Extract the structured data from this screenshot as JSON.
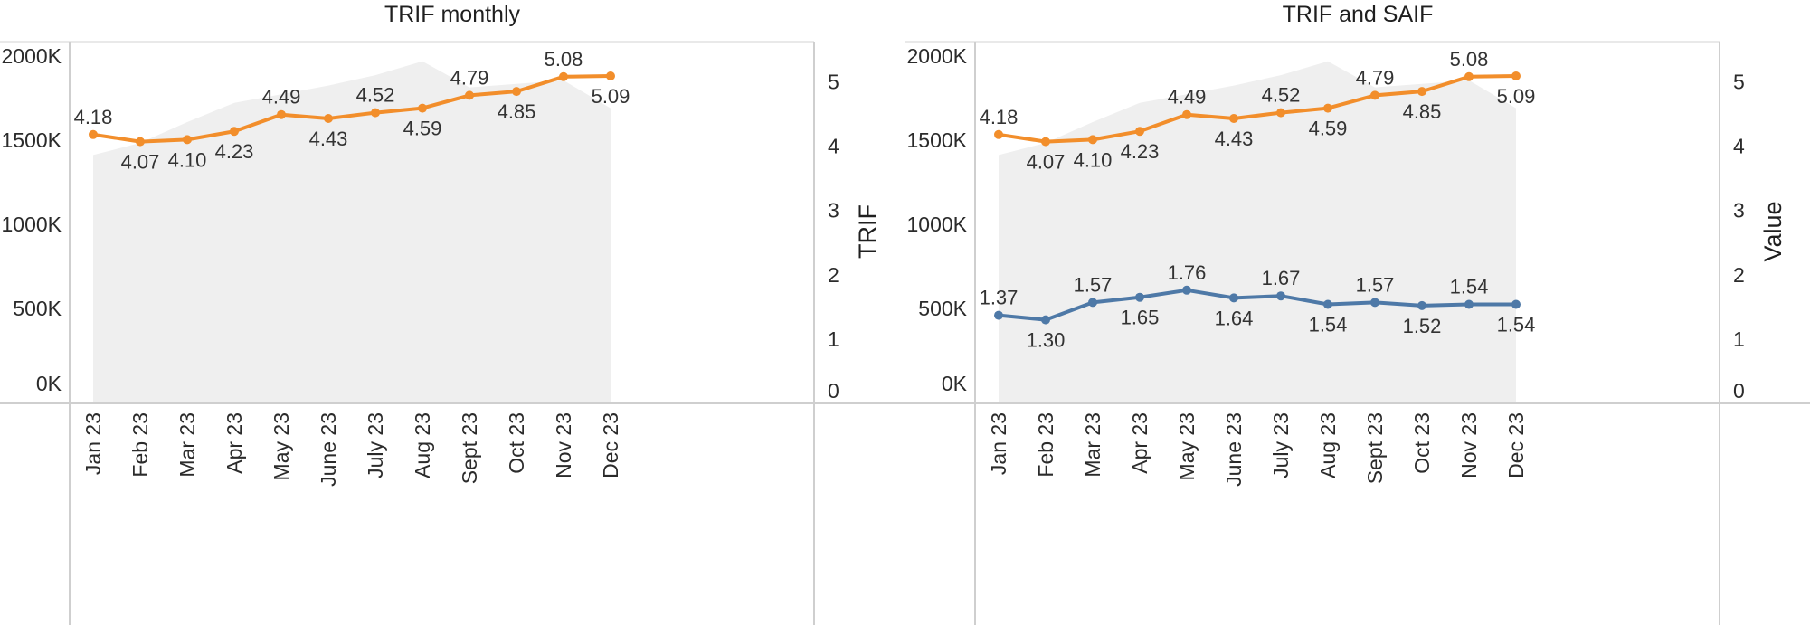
{
  "colors": {
    "trif": "#f28e2b",
    "saif": "#4e79a7",
    "area": "#efefef",
    "axis": "#cfcfcf"
  },
  "chart_data": [
    {
      "type": "line",
      "title": "TRIF monthly",
      "categories": [
        "Jan 23",
        "Feb 23",
        "Mar 23",
        "Apr 23",
        "May 23",
        "June 23",
        "July 23",
        "Aug 23",
        "Sept 23",
        "Oct 23",
        "Nov 23",
        "Dec 23"
      ],
      "left_axis": {
        "ticks": [
          "2000K",
          "1500K",
          "1000K",
          "500K",
          "0K"
        ],
        "ylim": [
          0,
          2000000
        ]
      },
      "right_axis": {
        "label": "TRIF",
        "ticks": [
          "5",
          "4",
          "3",
          "2",
          "1",
          "0"
        ],
        "ylim": [
          0,
          5.4
        ]
      },
      "area": {
        "axis": "left",
        "values": [
          1430000,
          1500000,
          1620000,
          1730000,
          1780000,
          1830000,
          1890000,
          1970000,
          1820000,
          1840000,
          1860000,
          1700000
        ]
      },
      "series": [
        {
          "axis": "right",
          "color_key": "trif",
          "values": [
            4.18,
            4.07,
            4.1,
            4.23,
            4.49,
            4.43,
            4.52,
            4.59,
            4.79,
            4.85,
            5.08,
            5.09
          ],
          "labels": [
            "4.18",
            "4.07",
            "4.10",
            "4.23",
            "4.49",
            "4.43",
            "4.52",
            "4.59",
            "4.79",
            "4.85",
            "5.08",
            "5.09"
          ],
          "label_pos": [
            "above",
            "below",
            "below",
            "below",
            "above",
            "below",
            "above",
            "below",
            "above",
            "below",
            "above",
            "below"
          ]
        }
      ],
      "grid": false
    },
    {
      "type": "line",
      "title": "TRIF and SAIF",
      "categories": [
        "Jan 23",
        "Feb 23",
        "Mar 23",
        "Apr 23",
        "May 23",
        "June 23",
        "July 23",
        "Aug 23",
        "Sept 23",
        "Oct 23",
        "Nov 23",
        "Dec 23"
      ],
      "left_axis": {
        "ticks": [
          "2000K",
          "1500K",
          "1000K",
          "500K",
          "0K"
        ],
        "ylim": [
          0,
          2000000
        ]
      },
      "right_axis": {
        "label": "Value",
        "ticks": [
          "5",
          "4",
          "3",
          "2",
          "1",
          "0"
        ],
        "ylim": [
          0,
          5.4
        ]
      },
      "area": {
        "axis": "left",
        "values": [
          1430000,
          1500000,
          1620000,
          1730000,
          1780000,
          1830000,
          1890000,
          1970000,
          1820000,
          1840000,
          1860000,
          1700000
        ]
      },
      "series": [
        {
          "axis": "right",
          "color_key": "trif",
          "values": [
            4.18,
            4.07,
            4.1,
            4.23,
            4.49,
            4.43,
            4.52,
            4.59,
            4.79,
            4.85,
            5.08,
            5.09
          ],
          "labels": [
            "4.18",
            "4.07",
            "4.10",
            "4.23",
            "4.49",
            "4.43",
            "4.52",
            "4.59",
            "4.79",
            "4.85",
            "5.08",
            "5.09"
          ],
          "label_pos": [
            "above",
            "below",
            "below",
            "below",
            "above",
            "below",
            "above",
            "below",
            "above",
            "below",
            "above",
            "below"
          ]
        },
        {
          "axis": "right",
          "color_key": "saif",
          "values": [
            1.37,
            1.3,
            1.57,
            1.65,
            1.76,
            1.64,
            1.67,
            1.54,
            1.57,
            1.52,
            1.54,
            1.54
          ],
          "labels": [
            "1.37",
            "1.30",
            "1.57",
            "1.65",
            "1.76",
            "1.64",
            "1.67",
            "1.54",
            "1.57",
            "1.52",
            "1.54",
            "1.54"
          ],
          "label_pos": [
            "above",
            "below",
            "above",
            "below",
            "above",
            "below",
            "above",
            "below",
            "above",
            "below",
            "above",
            "below"
          ]
        }
      ],
      "grid": false
    }
  ]
}
